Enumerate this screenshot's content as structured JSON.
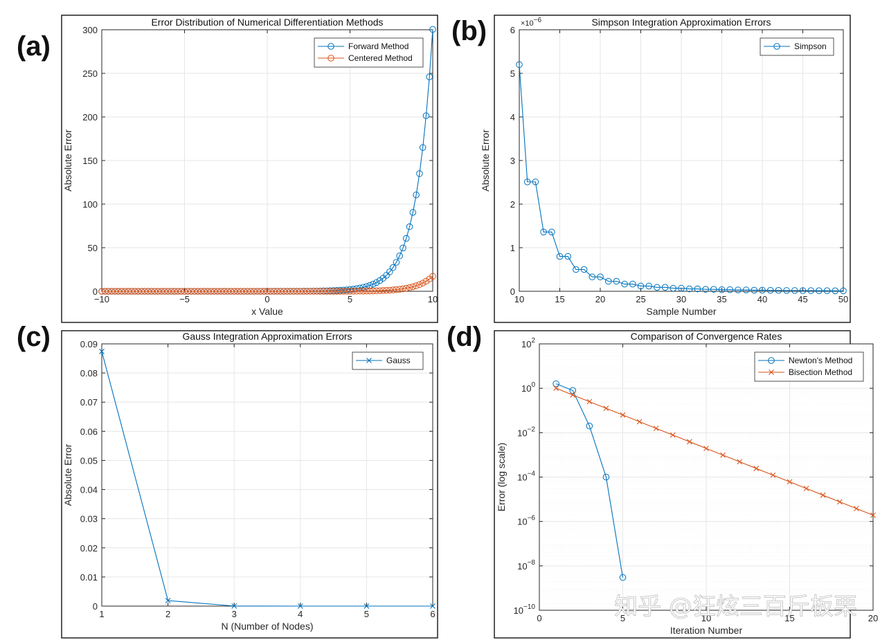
{
  "panel_labels": [
    "(a)",
    "(b)",
    "(c)",
    "(d)"
  ],
  "watermark": "知乎 @狂炫三百斤板栗",
  "colors": {
    "series1": "#0072BD",
    "series2": "#D95319",
    "axis": "#262626"
  },
  "chart_data": [
    {
      "id": "a",
      "type": "line",
      "title": "Error Distribution of Numerical Differentiation Methods",
      "xlabel": "x Value",
      "ylabel": "Absolute Error",
      "xlim": [
        -10,
        10
      ],
      "ylim": [
        0,
        300
      ],
      "xticks": [
        -10,
        -5,
        0,
        5,
        10
      ],
      "yticks": [
        0,
        50,
        100,
        150,
        200,
        250,
        300
      ],
      "grid": true,
      "legend_position": "top-right",
      "x": {
        "start": -10,
        "end": 10,
        "count": 101
      },
      "series": [
        {
          "name": "Forward Method",
          "marker": "circle",
          "formula": "1.1*exp(x)*0.0124",
          "color_key": "series1"
        },
        {
          "name": "Centered Method",
          "marker": "circle",
          "formula": "0.4*exp(x)/1000",
          "color_key": "series2"
        }
      ]
    },
    {
      "id": "b",
      "type": "line",
      "title": "Simpson Integration Approximation Errors",
      "xlabel": "Sample Number",
      "ylabel": "Absolute Error",
      "xlim": [
        10,
        50
      ],
      "ylim": [
        0,
        6
      ],
      "xticks": [
        10,
        15,
        20,
        25,
        30,
        35,
        40,
        45,
        50
      ],
      "yticks": [
        0,
        1,
        2,
        3,
        4,
        5,
        6
      ],
      "y_exponent_label": "× 10⁻⁶",
      "grid": true,
      "legend_position": "top-right",
      "series": [
        {
          "name": "Simpson",
          "marker": "circle",
          "color_key": "series1",
          "x": [
            10,
            11,
            12,
            13,
            14,
            15,
            16,
            17,
            18,
            19,
            20,
            21,
            22,
            23,
            24,
            25,
            26,
            27,
            28,
            29,
            30,
            31,
            32,
            33,
            34,
            35,
            36,
            37,
            38,
            39,
            40,
            41,
            42,
            43,
            44,
            45,
            46,
            47,
            48,
            49,
            50
          ],
          "y": [
            5.2,
            2.51,
            2.51,
            1.36,
            1.36,
            0.8,
            0.8,
            0.5,
            0.5,
            0.33,
            0.33,
            0.23,
            0.23,
            0.165,
            0.165,
            0.12,
            0.12,
            0.09,
            0.09,
            0.07,
            0.07,
            0.055,
            0.055,
            0.045,
            0.045,
            0.036,
            0.036,
            0.03,
            0.03,
            0.025,
            0.025,
            0.021,
            0.021,
            0.018,
            0.018,
            0.015,
            0.015,
            0.013,
            0.013,
            0.011,
            0.011
          ]
        }
      ]
    },
    {
      "id": "c",
      "type": "line",
      "title": "Gauss Integration Approximation Errors",
      "xlabel": "N (Number of Nodes)",
      "ylabel": "Absolute Error",
      "xlim": [
        1,
        6
      ],
      "ylim": [
        0,
        0.09
      ],
      "xticks": [
        1,
        2,
        3,
        4,
        5,
        6
      ],
      "yticks": [
        0,
        0.01,
        0.02,
        0.03,
        0.04,
        0.05,
        0.06,
        0.07,
        0.08,
        0.09
      ],
      "grid": true,
      "legend_position": "top-right",
      "series": [
        {
          "name": "Gauss",
          "marker": "x",
          "color_key": "series1",
          "x": [
            1,
            2,
            3,
            4,
            5,
            6
          ],
          "y": [
            0.0874,
            0.0019,
            3e-05,
            5e-07,
            0.0,
            0.0
          ]
        }
      ]
    },
    {
      "id": "d",
      "type": "line",
      "title": "Comparison of Convergence Rates",
      "xlabel": "Iteration Number",
      "ylabel": "Error (log scale)",
      "xlim": [
        0,
        20
      ],
      "ylim": [
        1e-10,
        100
      ],
      "yscale": "log",
      "xticks": [
        0,
        5,
        10,
        15,
        20
      ],
      "yticks_exponents": [
        -10,
        -8,
        -6,
        -4,
        -2,
        0,
        2
      ],
      "grid": true,
      "legend_position": "top-right",
      "series": [
        {
          "name": "Newton's Method",
          "marker": "circle",
          "color_key": "series1",
          "x": [
            1,
            2,
            3,
            4,
            5
          ],
          "y": [
            1.6,
            0.8,
            0.02,
            0.0001,
            3e-09
          ]
        },
        {
          "name": "Bisection Method",
          "marker": "x",
          "color_key": "series2",
          "x": [
            1,
            2,
            3,
            4,
            5,
            6,
            7,
            8,
            9,
            10,
            11,
            12,
            13,
            14,
            15,
            16,
            17,
            18,
            19,
            20
          ],
          "y": [
            1.0,
            0.5,
            0.25,
            0.125,
            0.0625,
            0.03125,
            0.015625,
            0.0078125,
            0.00390625,
            0.001953125,
            0.0009765625,
            0.00048828125,
            0.000244140625,
            0.0001220703125,
            6.103515625e-05,
            3.0517578125e-05,
            1.52587890625e-05,
            7.62939453125e-06,
            3.814697265625e-06,
            1.9073486328125e-06
          ]
        }
      ]
    }
  ]
}
